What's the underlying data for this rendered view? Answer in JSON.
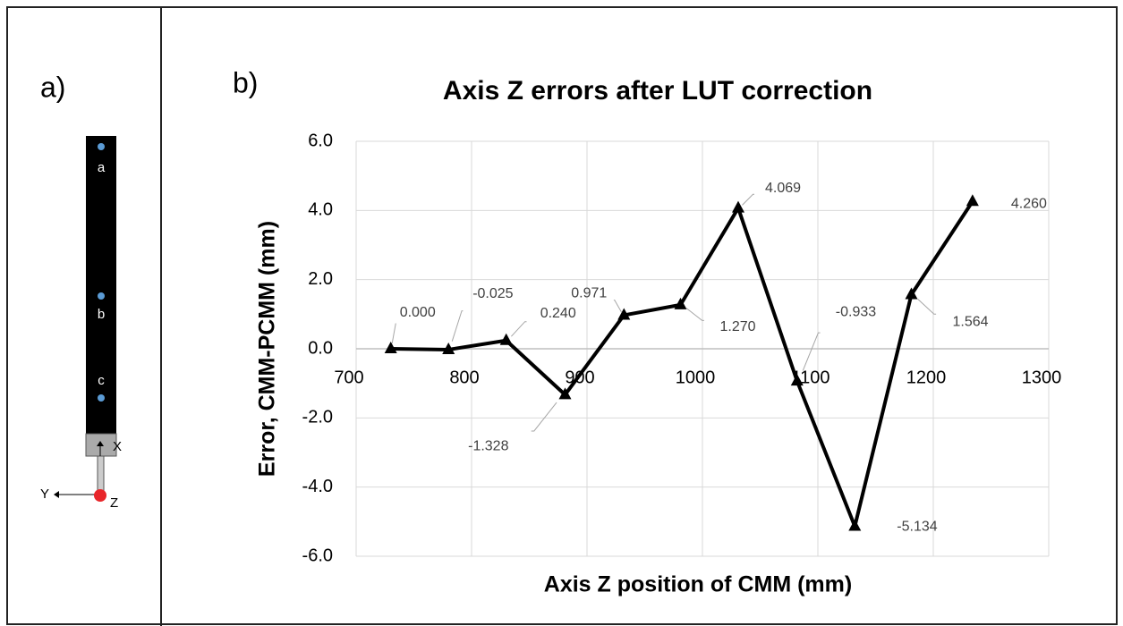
{
  "chart_data": {
    "type": "line",
    "panel_label": "b)",
    "title": "Axis Z errors after LUT correction",
    "x_label": "Axis Z position of CMM (mm)",
    "y_label": "Error, CMM-PCMM (mm)",
    "x": [
      730,
      780,
      830,
      881,
      932,
      981,
      1031,
      1082,
      1132,
      1181,
      1234
    ],
    "values": [
      0.0,
      -0.025,
      0.24,
      -1.328,
      0.971,
      1.27,
      4.069,
      -0.933,
      -5.134,
      1.564,
      4.26
    ],
    "value_labels": [
      "0.000",
      "-0.025",
      "0.240",
      "-1.328",
      "0.971",
      "1.270",
      "4.069",
      "-0.933",
      "-5.134",
      "1.564",
      "4.260"
    ],
    "color": "#000000",
    "xlim": [
      700,
      1300
    ],
    "xticks": [
      700,
      800,
      900,
      1000,
      1100,
      1200,
      1300
    ],
    "ylim": [
      -6,
      6
    ],
    "yticks": [
      {
        "value": -6,
        "label": "-6.0"
      },
      {
        "value": -4,
        "label": "-4.0"
      },
      {
        "value": -2,
        "label": "-2.0"
      },
      {
        "value": 0,
        "label": "0.0"
      },
      {
        "value": 2,
        "label": "2.0"
      },
      {
        "value": 4,
        "label": "4.0"
      },
      {
        "value": 6,
        "label": "6.0"
      }
    ],
    "grid": true
  },
  "diagram": {
    "panel_label": "a)",
    "points": [
      "a",
      "b",
      "c"
    ],
    "axes": [
      "X",
      "Y",
      "Z"
    ]
  }
}
